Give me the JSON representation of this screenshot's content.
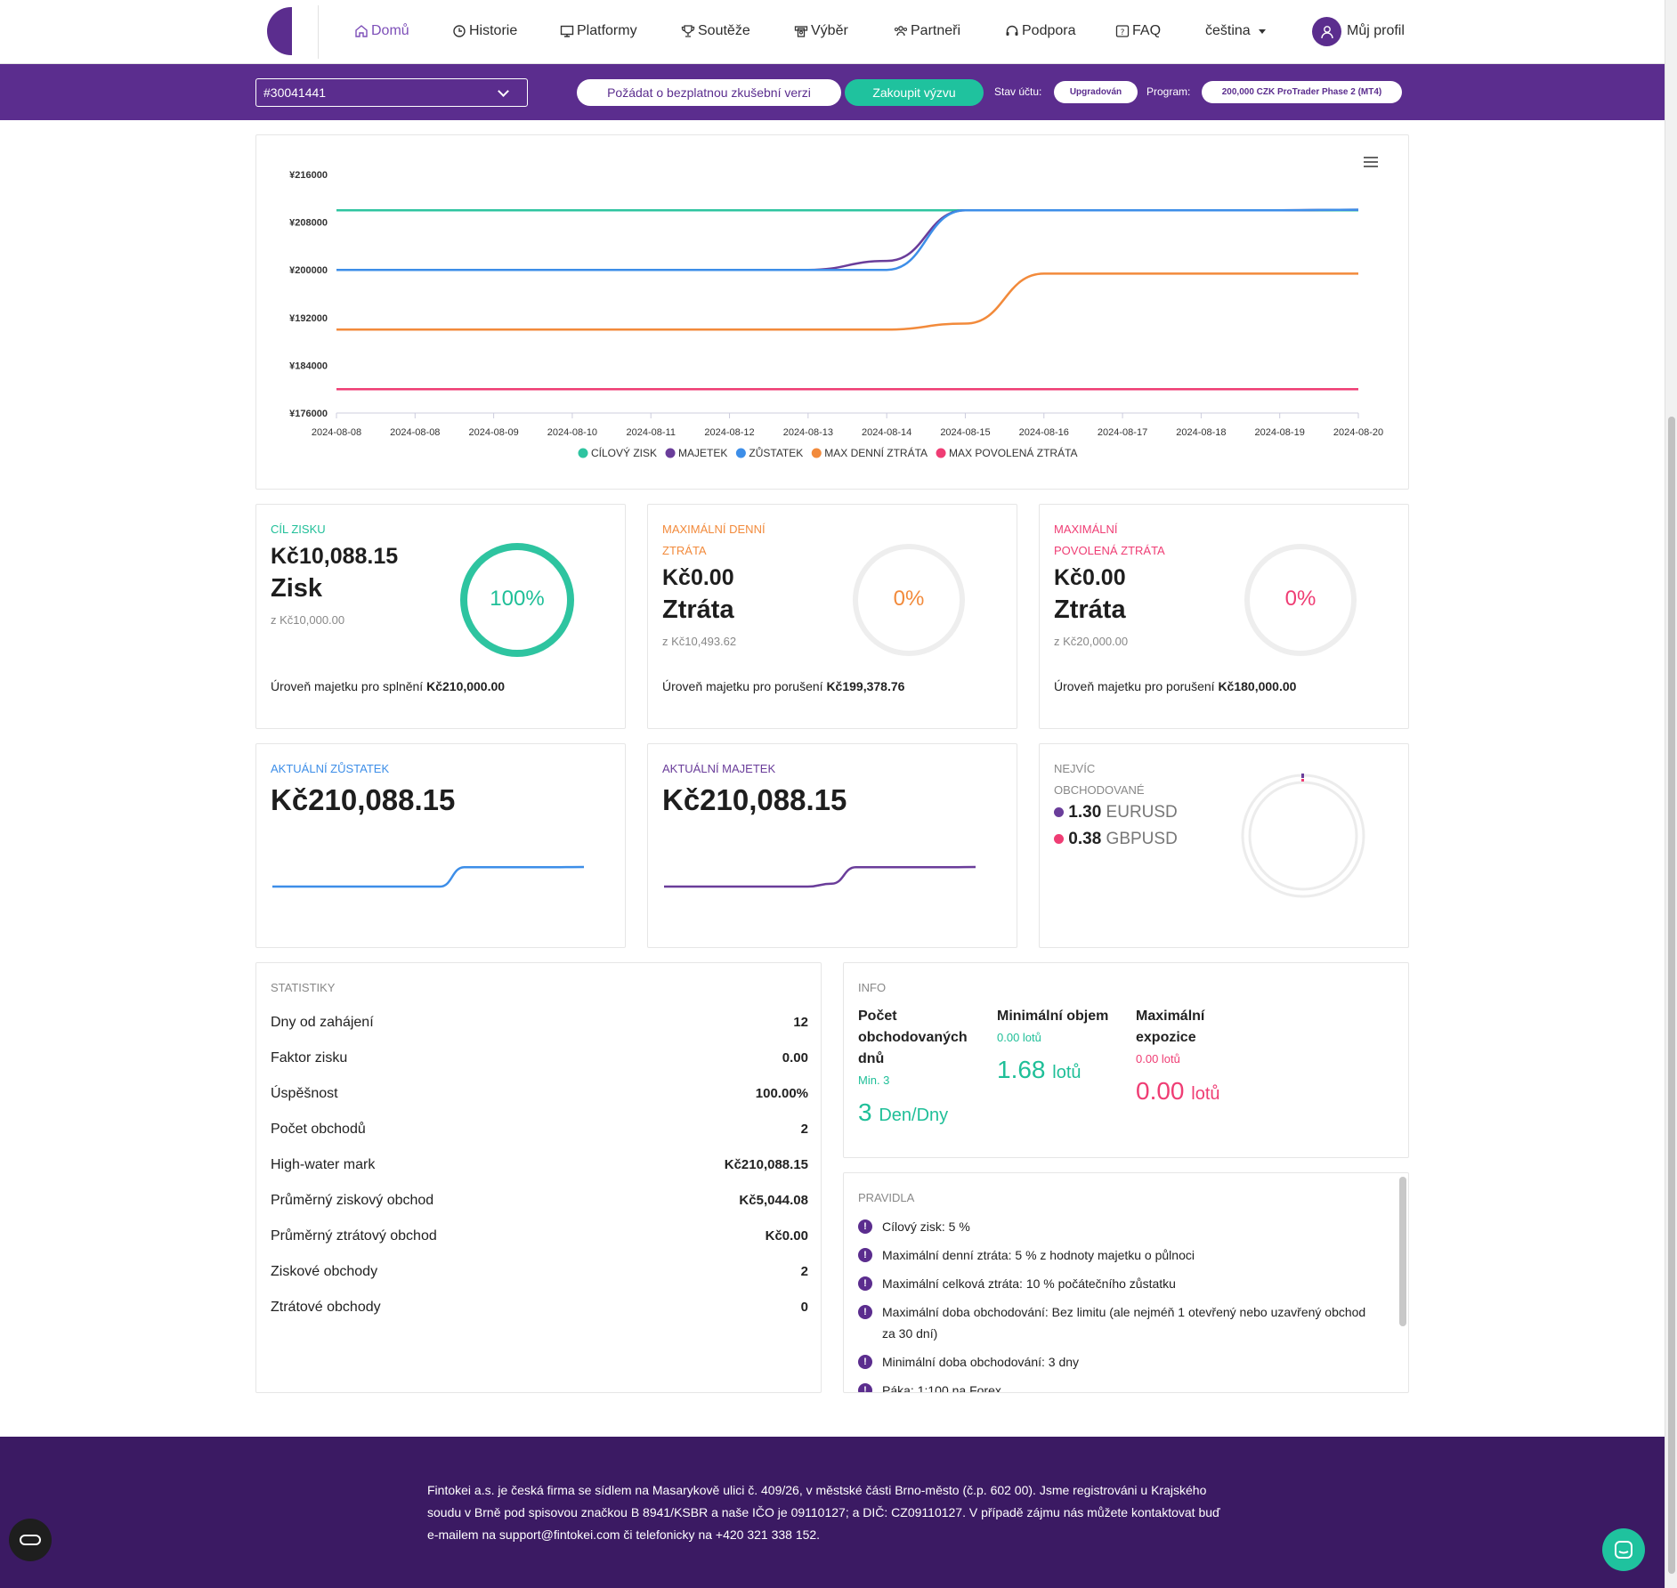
{
  "nav": {
    "items": [
      {
        "label": "Domů",
        "icon": "home-icon"
      },
      {
        "label": "Historie",
        "icon": "clock-icon"
      },
      {
        "label": "Platformy",
        "icon": "monitor-icon"
      },
      {
        "label": "Soutěže",
        "icon": "trophy-icon"
      },
      {
        "label": "Výběr",
        "icon": "withdraw-icon"
      },
      {
        "label": "Partneři",
        "icon": "users-icon"
      },
      {
        "label": "Podpora",
        "icon": "headset-icon"
      },
      {
        "label": "FAQ",
        "icon": "faq-icon"
      }
    ],
    "language": "čeština",
    "profile": "Můj profil"
  },
  "account_bar": {
    "account": "#30041441",
    "trial_button": "Požádat o bezplatnou zkušební verzi",
    "buy_button": "Zakoupit výzvu",
    "status_label": "Stav účtu:",
    "status_value": "Upgradován",
    "program_label": "Program:",
    "program_value": "200,000 CZK ProTrader Phase 2 (MT4)"
  },
  "chart_data": {
    "type": "line",
    "x": [
      "2024-08-08",
      "2024-08-08",
      "2024-08-09",
      "2024-08-10",
      "2024-08-11",
      "2024-08-12",
      "2024-08-13",
      "2024-08-14",
      "2024-08-15",
      "2024-08-16",
      "2024-08-17",
      "2024-08-18",
      "2024-08-19",
      "2024-08-20"
    ],
    "ylim": [
      176000,
      216000
    ],
    "yticks": [
      "¥216000",
      "¥208000",
      "¥200000",
      "¥192000",
      "¥184000",
      "¥176000"
    ],
    "ytick_values": [
      216000,
      208000,
      200000,
      192000,
      184000,
      176000
    ],
    "series": [
      {
        "name": "CÍLOVÝ ZISK",
        "color": "#2ec4a0",
        "values": [
          210000,
          210000,
          210000,
          210000,
          210000,
          210000,
          210000,
          210000,
          210000,
          210000,
          210000,
          210000,
          210000,
          210000
        ]
      },
      {
        "name": "MAJETEK",
        "color": "#6a3d9a",
        "values": [
          200000,
          200000,
          200000,
          200000,
          200000,
          200000,
          200000,
          201500,
          210000,
          210000,
          210000,
          210000,
          210000,
          210088
        ]
      },
      {
        "name": "ZŮSTATEK",
        "color": "#3d8ee8",
        "values": [
          200000,
          200000,
          200000,
          200000,
          200000,
          200000,
          200000,
          200000,
          210000,
          210000,
          210000,
          210000,
          210000,
          210088
        ]
      },
      {
        "name": "MAX DENNÍ ZTRÁTA",
        "color": "#f28a3b",
        "values": [
          190000,
          190000,
          190000,
          190000,
          190000,
          190000,
          190000,
          190000,
          191000,
          199379,
          199379,
          199379,
          199379,
          199379
        ]
      },
      {
        "name": "MAX POVOLENÁ ZTRÁTA",
        "color": "#ef3d74",
        "values": [
          180000,
          180000,
          180000,
          180000,
          180000,
          180000,
          180000,
          180000,
          180000,
          180000,
          180000,
          180000,
          180000,
          180000
        ]
      }
    ]
  },
  "cards": {
    "profit": {
      "label": "CÍL ZISKU",
      "amount": "Kč10,088.15",
      "word": "Zisk",
      "from": "z Kč10,000.00",
      "pct": "100%",
      "fraction": 1.0,
      "level_text": "Úroveň majetku pro splnění ",
      "level_value": "Kč210,000.00",
      "color": "#2ec4a0"
    },
    "daily": {
      "label1": "MAXIMÁLNÍ DENNÍ",
      "label2": "ZTRÁTA",
      "amount": "Kč0.00",
      "word": "Ztráta",
      "from": "z Kč10,493.62",
      "pct": "0%",
      "fraction": 0,
      "level_text": "Úroveň majetku pro porušení ",
      "level_value": "Kč199,378.76",
      "color": "#f28a3b"
    },
    "max": {
      "label1": "MAXIMÁLNÍ",
      "label2": "POVOLENÁ ZTRÁTA",
      "amount": "Kč0.00",
      "word": "Ztráta",
      "from": "z Kč20,000.00",
      "pct": "0%",
      "fraction": 0,
      "level_text": "Úroveň majetku pro porušení ",
      "level_value": "Kč180,000.00",
      "color": "#ef3d74"
    },
    "balance": {
      "label": "AKTUÁLNÍ ZŮSTATEK",
      "amount": "Kč210,088.15",
      "color": "#3d8ee8"
    },
    "equity": {
      "label": "AKTUÁLNÍ MAJETEK",
      "amount": "Kč210,088.15",
      "color": "#6a3d9a"
    },
    "traded": {
      "label1": "NEJVÍC",
      "label2": "OBCHODOVANÉ",
      "items": [
        {
          "value": "1.30",
          "symbol": "EURUSD",
          "color": "#6a3d9a"
        },
        {
          "value": "0.38",
          "symbol": "GBPUSD",
          "color": "#ef3d74"
        }
      ]
    }
  },
  "stats": {
    "title": "STATISTIKY",
    "rows": [
      {
        "label": "Dny od zahájení",
        "value": "12"
      },
      {
        "label": "Faktor zisku",
        "value": "0.00"
      },
      {
        "label": "Úspěšnost",
        "value": "100.00%"
      },
      {
        "label": "Počet obchodů",
        "value": "2"
      },
      {
        "label": "High-water mark",
        "value": "Kč210,088.15"
      },
      {
        "label": "Průměrný ziskový obchod",
        "value": "Kč5,044.08"
      },
      {
        "label": "Průměrný ztrátový obchod",
        "value": "Kč0.00"
      },
      {
        "label": "Ziskové obchody",
        "value": "2"
      },
      {
        "label": "Ztrátové obchody",
        "value": "0"
      }
    ]
  },
  "info": {
    "title": "INFO",
    "days": {
      "l1": "Počet",
      "l2": "obchodovaných",
      "l3": "dnů",
      "sub": "Min. 3",
      "value": "3",
      "unit": "Den/Dny",
      "color": "#1fbf98"
    },
    "min_volume": {
      "l1": "Minimální objem",
      "sub": "0.00 lotů",
      "value": "1.68",
      "unit": "lotů",
      "color": "#1fbf98"
    },
    "max_exposure": {
      "l1": "Maximální",
      "l2": "expozice",
      "sub": "0.00 lotů",
      "value": "0.00",
      "unit": "lotů",
      "color": "#ef3d74"
    }
  },
  "rules": {
    "title": "PRAVIDLA",
    "items": [
      "Cílový zisk: 5 %",
      "Maximální denní ztráta: 5 % z hodnoty majetku o půlnoci",
      "Maximální celková ztráta: 10 % počátečního zůstatku",
      "Maximální doba obchodování: Bez limitu (ale nejméň 1 otevřený nebo uzavřený obchod za 30 dní)",
      "Minimální doba obchodování: 3 dny",
      "Páka: 1:100 na Forex"
    ]
  },
  "footer": {
    "text": "Fintokei a.s. je česká firma se sídlem na Masarykově ulici č. 409/26, v městské části Brno-město (č.p. 602 00). Jsme registrováni u Krajského soudu v Brně pod spisovou značkou B 8941/KSBR a naše IČO je 09110127; a DIČ: CZ09110127. V případě zájmu nás můžete kontaktovat buď e-mailem na support@fintokei.com či telefonicky na +420 321 338 152."
  }
}
